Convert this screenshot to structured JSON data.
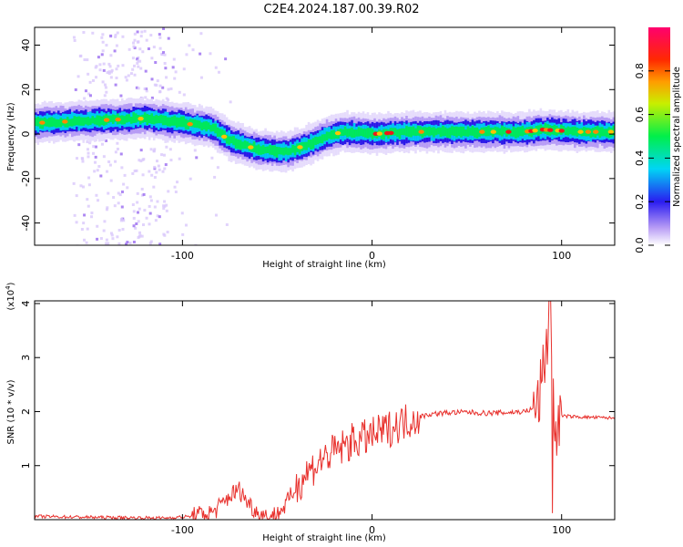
{
  "title": "C2E4.2024.187.00.39.R02",
  "chart_data": [
    {
      "type": "heatmap",
      "xlabel": "Height of straight line (km)",
      "ylabel": "Frequency (Hz)",
      "xlim": [
        -178,
        128
      ],
      "ylim": [
        -50,
        48
      ],
      "xticks": [
        -100,
        0,
        100
      ],
      "yticks": [
        -40,
        -20,
        0,
        20,
        40
      ],
      "colorbar": {
        "label": "Normalized spectral amplitude",
        "range": [
          0,
          1
        ],
        "ticks": [
          "0.0",
          "0.2",
          "0.4",
          "0.6",
          "0.8"
        ]
      },
      "ridge": [
        {
          "x": -178,
          "y": 5
        },
        {
          "x": -150,
          "y": 6
        },
        {
          "x": -120,
          "y": 7
        },
        {
          "x": -100,
          "y": 5
        },
        {
          "x": -85,
          "y": 3
        },
        {
          "x": -75,
          "y": -3
        },
        {
          "x": -60,
          "y": -7
        },
        {
          "x": -45,
          "y": -8
        },
        {
          "x": -35,
          "y": -5
        },
        {
          "x": -25,
          "y": -1
        },
        {
          "x": -15,
          "y": 1
        },
        {
          "x": 0,
          "y": 0
        },
        {
          "x": 20,
          "y": 1
        },
        {
          "x": 50,
          "y": 1
        },
        {
          "x": 80,
          "y": 1
        },
        {
          "x": 90,
          "y": 2
        },
        {
          "x": 110,
          "y": 1
        },
        {
          "x": 128,
          "y": 1
        }
      ],
      "ridge_peak_ranges": [
        [
          -20,
          10
        ],
        [
          70,
          110
        ]
      ]
    },
    {
      "type": "line",
      "xlabel": "Height of straight line (km)",
      "ylabel": "SNR (10 * v/v)",
      "y_multiplier": "(x10^4)",
      "multiplier_base": "x10",
      "multiplier_exp": "4",
      "xlim": [
        -178,
        128
      ],
      "ylim": [
        0,
        4.05
      ],
      "xticks": [
        -100,
        0,
        100
      ],
      "yticks": [
        1,
        2,
        3,
        4
      ],
      "line_color": "#e8312d",
      "series": [
        {
          "x": [
            -178,
            -140,
            -110,
            -95,
            -85,
            -80,
            -75,
            -70,
            -65,
            -60,
            -55,
            -50,
            -45,
            -40,
            -35,
            -30,
            -25,
            -20,
            -15,
            -10,
            -5,
            0,
            5,
            10,
            15,
            20,
            25,
            30,
            40,
            50,
            60,
            70,
            80,
            85,
            88,
            90,
            92,
            94,
            96,
            100,
            110,
            128
          ],
          "y": [
            0.06,
            0.04,
            0.03,
            0.06,
            0.12,
            0.25,
            0.45,
            0.55,
            0.3,
            0.12,
            0.04,
            0.1,
            0.3,
            0.6,
            0.85,
            1.0,
            1.15,
            1.25,
            1.35,
            1.45,
            1.5,
            1.55,
            1.62,
            1.7,
            1.78,
            1.85,
            1.9,
            1.95,
            1.98,
            1.99,
            1.97,
            1.98,
            2.0,
            2.05,
            2.2,
            2.7,
            3.2,
            4.0,
            1.6,
            1.92,
            1.9,
            1.88
          ]
        }
      ]
    }
  ]
}
